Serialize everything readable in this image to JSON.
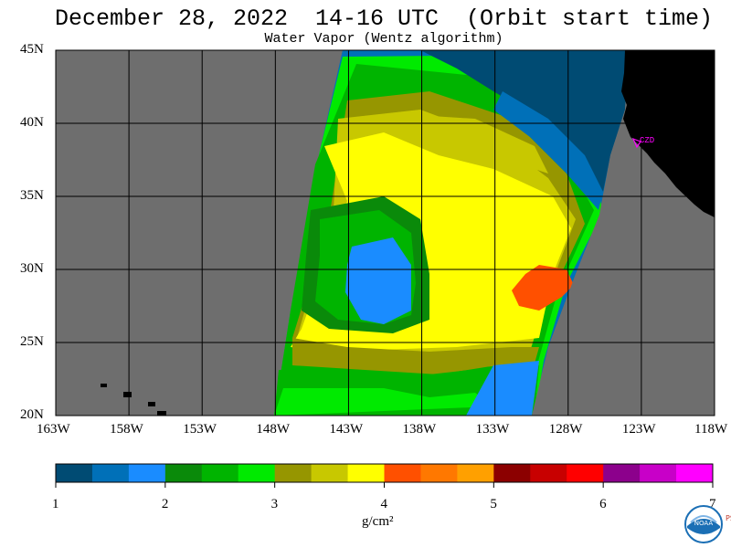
{
  "header": {
    "title": "December 28, 2022  14-16 UTC  (Orbit start time)",
    "subtitle": "Water Vapor (Wentz algorithm)"
  },
  "map": {
    "lat_labels": [
      "45N",
      "40N",
      "35N",
      "30N",
      "25N",
      "20N"
    ],
    "lon_labels": [
      "163W",
      "158W",
      "153W",
      "148W",
      "143W",
      "138W",
      "133W",
      "128W",
      "123W",
      "118W"
    ],
    "lat_range": [
      20,
      45
    ],
    "lon_range": [
      -163,
      -118
    ],
    "station_label": "CZD",
    "colors": {
      "no_data": "#6e6e6e",
      "land": "#000000",
      "grid": "#000000",
      "station": "#ff00ff"
    }
  },
  "colorbar": {
    "tick_labels": [
      "1",
      "2",
      "3",
      "4",
      "5",
      "6",
      "7"
    ],
    "units": "g/cm²",
    "colors": [
      "#004b73",
      "#0070b8",
      "#1a8cff",
      "#0a8a0a",
      "#00b400",
      "#00ea00",
      "#969600",
      "#c8c800",
      "#ffff00",
      "#ff5000",
      "#ff7800",
      "#ffa000",
      "#8c0000",
      "#c80000",
      "#ff0000",
      "#8c008c",
      "#c800c8",
      "#ff00ff"
    ]
  },
  "logo": {
    "noaa_text": "NOAA",
    "psl_text": "PSL"
  }
}
